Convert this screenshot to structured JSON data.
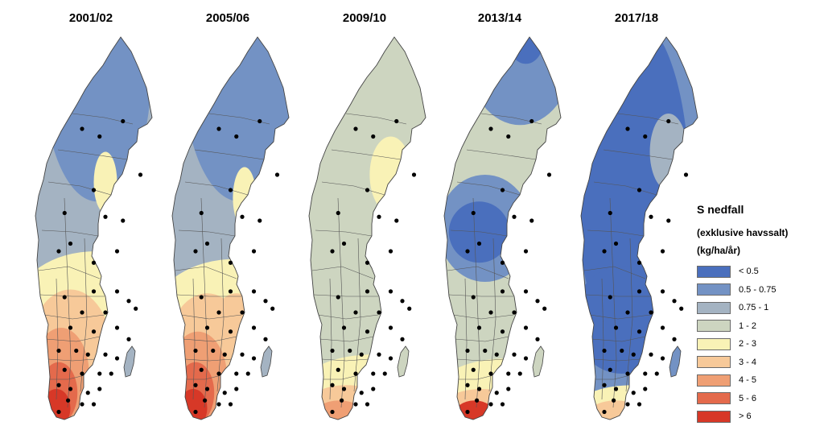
{
  "panels": [
    {
      "title": "2001/02",
      "base": "class2",
      "layers": [
        {
          "class": "class1",
          "ellipses": [
            [
              0.53,
              0.1,
              0.46,
              0.33
            ]
          ]
        },
        {
          "class": "class4",
          "ellipses": [
            [
              0.52,
              0.7,
              0.68,
              0.14
            ],
            [
              0.6,
              0.38,
              0.1,
              0.08
            ]
          ]
        },
        {
          "class": "class5",
          "ellipses": [
            [
              0.3,
              0.83,
              0.36,
              0.17
            ],
            [
              0.5,
              0.78,
              0.2,
              0.05
            ]
          ]
        },
        {
          "class": "class6",
          "ellipses": [
            [
              0.22,
              0.88,
              0.24,
              0.12
            ]
          ]
        },
        {
          "class": "class7",
          "ellipses": [
            [
              0.2,
              0.93,
              0.16,
              0.08
            ]
          ]
        },
        {
          "class": "class8",
          "ellipses": [
            [
              0.18,
              0.97,
              0.12,
              0.05
            ]
          ]
        }
      ]
    },
    {
      "title": "2005/06",
      "base": "class2",
      "layers": [
        {
          "class": "class1",
          "ellipses": [
            [
              0.58,
              0.1,
              0.48,
              0.33
            ]
          ]
        },
        {
          "class": "class4",
          "ellipses": [
            [
              0.55,
              0.72,
              0.7,
              0.14
            ],
            [
              0.62,
              0.42,
              0.1,
              0.08
            ]
          ]
        },
        {
          "class": "class5",
          "ellipses": [
            [
              0.3,
              0.84,
              0.36,
              0.17
            ],
            [
              0.55,
              0.72,
              0.16,
              0.05
            ]
          ]
        },
        {
          "class": "class6",
          "ellipses": [
            [
              0.22,
              0.89,
              0.25,
              0.12
            ]
          ]
        },
        {
          "class": "class7",
          "ellipses": [
            [
              0.2,
              0.93,
              0.16,
              0.08
            ]
          ]
        },
        {
          "class": "class8",
          "ellipses": [
            [
              0.18,
              0.97,
              0.12,
              0.05
            ]
          ]
        }
      ]
    },
    {
      "title": "2009/10",
      "base": "class3",
      "layers": [
        {
          "class": "class4",
          "ellipses": [
            [
              0.7,
              0.36,
              0.18,
              0.1
            ],
            [
              0.55,
              0.91,
              0.6,
              0.08
            ]
          ]
        },
        {
          "class": "class5",
          "ellipses": [
            [
              0.32,
              0.97,
              0.36,
              0.06
            ]
          ]
        },
        {
          "class": "class6",
          "ellipses": [
            [
              0.26,
              0.99,
              0.22,
              0.04
            ]
          ]
        }
      ]
    },
    {
      "title": "2013/14",
      "base": "class3",
      "layers": [
        {
          "class": "class1",
          "ellipses": [
            [
              0.65,
              0.05,
              0.45,
              0.18
            ],
            [
              0.35,
              0.5,
              0.4,
              0.14
            ]
          ]
        },
        {
          "class": "class0",
          "ellipses": [
            [
              0.7,
              0.01,
              0.15,
              0.06
            ],
            [
              0.3,
              0.51,
              0.26,
              0.08
            ]
          ]
        },
        {
          "class": "class4",
          "ellipses": [
            [
              0.55,
              0.92,
              0.6,
              0.08
            ]
          ]
        },
        {
          "class": "class5",
          "ellipses": [
            [
              0.32,
              0.97,
              0.34,
              0.05
            ]
          ]
        },
        {
          "class": "class8",
          "ellipses": [
            [
              0.26,
              0.99,
              0.18,
              0.04
            ]
          ]
        }
      ]
    },
    {
      "title": "2017/18",
      "base": "class1",
      "layers": [
        {
          "class": "class0",
          "ellipses": [
            [
              0.45,
              0.4,
              0.48,
              0.45
            ],
            [
              0.35,
              0.74,
              0.42,
              0.14
            ]
          ]
        },
        {
          "class": "class2",
          "ellipses": [
            [
              0.75,
              0.3,
              0.16,
              0.1
            ]
          ]
        },
        {
          "class": "class4",
          "ellipses": [
            [
              0.45,
              0.96,
              0.46,
              0.05
            ]
          ]
        },
        {
          "class": "class5",
          "ellipses": [
            [
              0.3,
              0.99,
              0.25,
              0.04
            ]
          ]
        }
      ]
    }
  ],
  "colors": {
    "class0": "#4a6fbd",
    "class1": "#7392c4",
    "class2": "#a4b3c2",
    "class3": "#cdd5c0",
    "class4": "#f9f2b6",
    "class5": "#f7c999",
    "class6": "#ef9f74",
    "class7": "#e46a4c",
    "class8": "#d73827"
  },
  "legend": {
    "title": "S nedfall",
    "subtitle": "(exklusive havssalt)",
    "unit": "(kg/ha/år)",
    "items": [
      {
        "label": "< 0.5",
        "color": "#4a6fbd"
      },
      {
        "label": "0.5 - 0.75",
        "color": "#7392c4"
      },
      {
        "label": "0.75 - 1",
        "color": "#a4b3c2"
      },
      {
        "label": "1 - 2",
        "color": "#cdd5c0"
      },
      {
        "label": "2 - 3",
        "color": "#f9f2b6"
      },
      {
        "label": "3 - 4",
        "color": "#f7c999"
      },
      {
        "label": "4 - 5",
        "color": "#ef9f74"
      },
      {
        "label": "5 - 6",
        "color": "#e46a4c"
      },
      {
        "label": "> 6",
        "color": "#d73827"
      }
    ]
  },
  "stations": [
    [
      0.4,
      0.24
    ],
    [
      0.55,
      0.26
    ],
    [
      0.75,
      0.22
    ],
    [
      0.9,
      0.36
    ],
    [
      0.5,
      0.4
    ],
    [
      0.25,
      0.46
    ],
    [
      0.3,
      0.54
    ],
    [
      0.6,
      0.47
    ],
    [
      0.75,
      0.48
    ],
    [
      0.2,
      0.56
    ],
    [
      0.5,
      0.59
    ],
    [
      0.7,
      0.56
    ],
    [
      0.25,
      0.68
    ],
    [
      0.5,
      0.665
    ],
    [
      0.7,
      0.665
    ],
    [
      0.8,
      0.69
    ],
    [
      0.86,
      0.71
    ],
    [
      0.4,
      0.72
    ],
    [
      0.6,
      0.72
    ],
    [
      0.3,
      0.76
    ],
    [
      0.5,
      0.77
    ],
    [
      0.7,
      0.76
    ],
    [
      0.8,
      0.79
    ],
    [
      0.2,
      0.82
    ],
    [
      0.35,
      0.82
    ],
    [
      0.45,
      0.83
    ],
    [
      0.6,
      0.83
    ],
    [
      0.7,
      0.84
    ],
    [
      0.25,
      0.87
    ],
    [
      0.4,
      0.88
    ],
    [
      0.55,
      0.88
    ],
    [
      0.65,
      0.88
    ],
    [
      0.2,
      0.91
    ],
    [
      0.3,
      0.92
    ],
    [
      0.45,
      0.93
    ],
    [
      0.55,
      0.92
    ],
    [
      0.28,
      0.95
    ],
    [
      0.4,
      0.96
    ],
    [
      0.5,
      0.96
    ],
    [
      0.2,
      0.98
    ]
  ]
}
